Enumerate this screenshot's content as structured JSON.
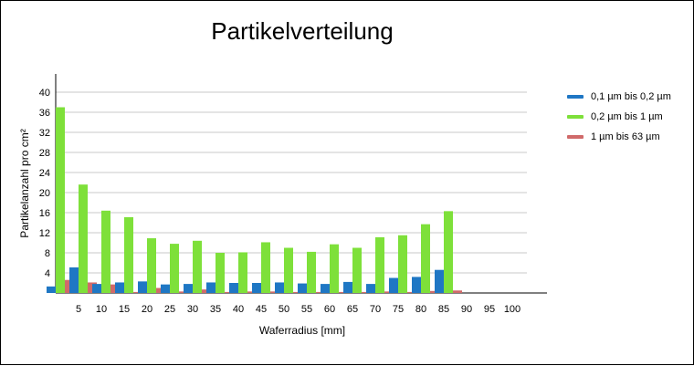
{
  "chart_data": {
    "type": "bar",
    "title": "Partikelverteilung",
    "xlabel": "Waferradius [mm]",
    "ylabel": "Partikelanzahl pro cm²",
    "ylim": [
      0,
      40
    ],
    "yticks": [
      4,
      8,
      12,
      16,
      20,
      24,
      28,
      32,
      36,
      40
    ],
    "grid": true,
    "legend_position": "right",
    "categories": [
      "5",
      "10",
      "15",
      "20",
      "25",
      "30",
      "35",
      "40",
      "45",
      "50",
      "55",
      "60",
      "65",
      "70",
      "75",
      "80",
      "85",
      "90",
      "95",
      "100"
    ],
    "series": [
      {
        "name": "0,1 µm bis 0,2 µm",
        "color": "#1f77c4",
        "values": [
          1.3,
          5.1,
          1.8,
          2.1,
          2.3,
          1.7,
          1.8,
          2.1,
          2.0,
          2.0,
          2.1,
          1.9,
          1.8,
          2.2,
          1.8,
          3.0,
          3.2,
          4.6,
          0,
          0
        ]
      },
      {
        "name": "0,2 µm bis 1 µm",
        "color": "#7ee03a",
        "values": [
          37.0,
          21.6,
          16.4,
          15.1,
          10.9,
          9.8,
          10.4,
          8.0,
          8.1,
          10.1,
          9.0,
          8.2,
          9.7,
          9.0,
          11.1,
          11.5,
          13.7,
          16.3,
          0,
          0
        ]
      },
      {
        "name": "1 µm bis 63 µm",
        "color": "#d06a6a",
        "values": [
          2.6,
          2.1,
          1.7,
          0.2,
          1.0,
          0.3,
          0.7,
          0.2,
          0.3,
          0.3,
          0.2,
          0.2,
          0.2,
          0.2,
          0.3,
          0.2,
          0.4,
          0.5,
          0,
          0
        ]
      }
    ]
  }
}
